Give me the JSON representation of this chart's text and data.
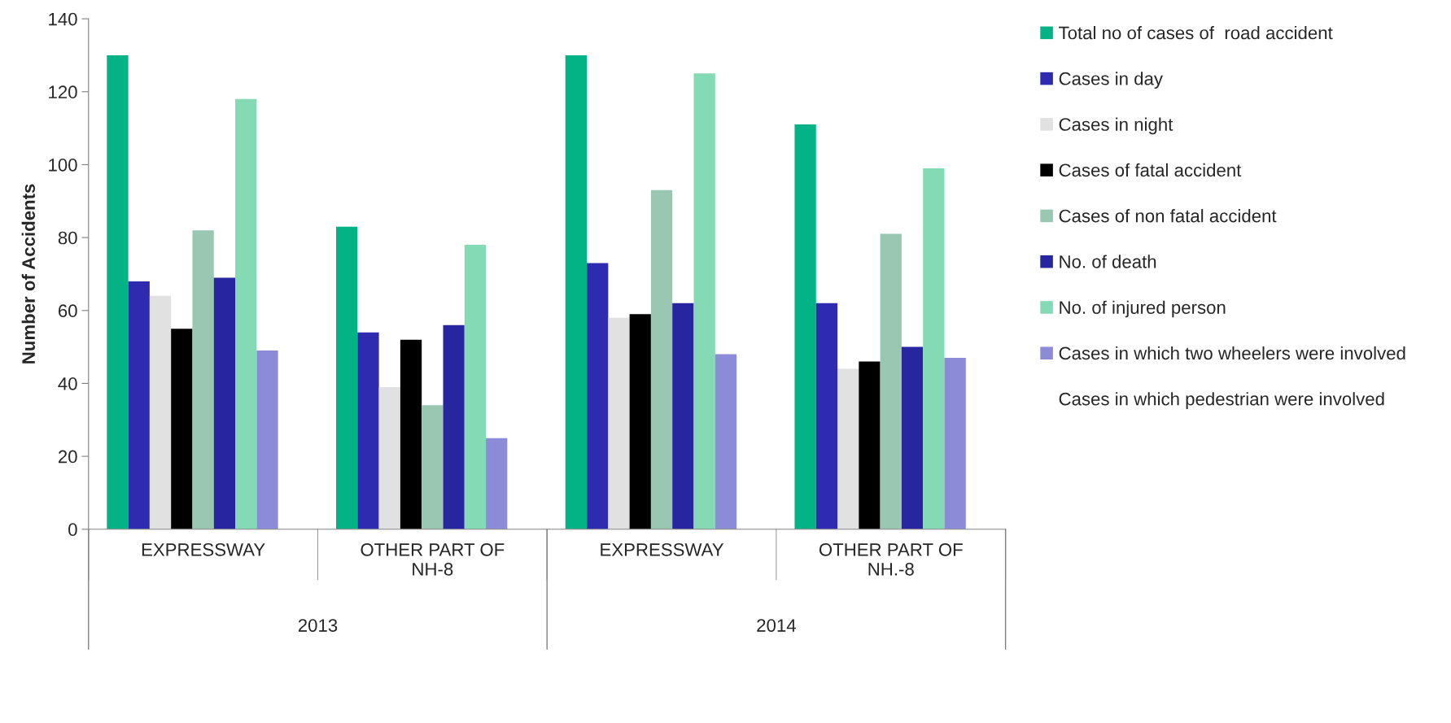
{
  "chart_data": {
    "type": "bar",
    "ylabel": "Number of Accidents",
    "categories": [
      "EXPRESSWAY",
      "OTHER PART OF NH-8",
      "EXPRESSWAY",
      "OTHER PART OF NH.-8"
    ],
    "annotations": [
      "2013",
      "2014"
    ],
    "series": [
      {
        "name": "Total no of cases of  road accident",
        "color": "#03b386",
        "values": [
          130,
          83,
          130,
          111
        ]
      },
      {
        "name": "Cases in day",
        "color": "#2e2bb0",
        "values": [
          68,
          54,
          73,
          62
        ]
      },
      {
        "name": "Cases in night",
        "color": "#e1e1e1",
        "values": [
          64,
          39,
          58,
          44
        ]
      },
      {
        "name": "Cases of fatal accident",
        "color": "#000000",
        "values": [
          55,
          52,
          59,
          46
        ]
      },
      {
        "name": "Cases of non fatal accident",
        "color": "#99c7b2",
        "values": [
          82,
          34,
          93,
          81
        ]
      },
      {
        "name": "No. of death",
        "color": "#2726a0",
        "values": [
          69,
          56,
          62,
          50
        ]
      },
      {
        "name": "No. of injured person",
        "color": "#85dab6",
        "values": [
          118,
          78,
          125,
          99
        ]
      },
      {
        "name": "Cases in which two wheelers were involved",
        "color": "#8b8bd8",
        "values": [
          49,
          25,
          48,
          47
        ]
      },
      {
        "name": "Cases in which pedestrian were involved",
        "values": [
          null,
          null,
          null,
          null
        ]
      }
    ],
    "ylim": [
      0,
      140
    ],
    "yticks": [
      0,
      20,
      40,
      60,
      80,
      100,
      120,
      140
    ],
    "grid": false,
    "legend": "right"
  }
}
